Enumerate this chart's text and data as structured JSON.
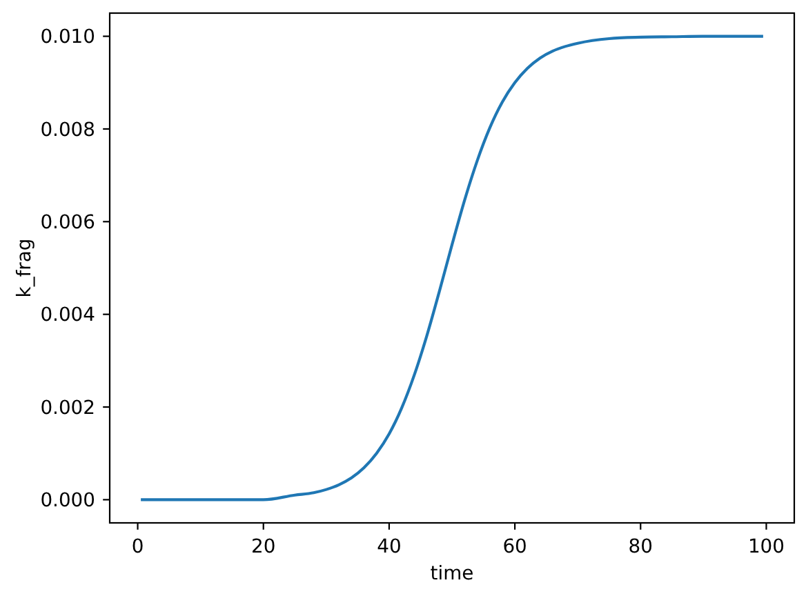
{
  "chart_data": {
    "type": "line",
    "xlabel": "time",
    "ylabel": "k_frag",
    "series": [
      {
        "color": "#1f77b4",
        "x": [
          0.5,
          5,
          10,
          15,
          20,
          25,
          28,
          30,
          32,
          34,
          36,
          38,
          40,
          42,
          44,
          46,
          48,
          50,
          52,
          54,
          56,
          58,
          60,
          62,
          64,
          66,
          68,
          70,
          75,
          80,
          85,
          90,
          95,
          99.5
        ],
        "values": [
          0,
          0,
          0,
          0,
          0,
          0.0001,
          0.00015,
          0.00022,
          0.00032,
          0.00047,
          0.00069,
          0.001,
          0.00142,
          0.00198,
          0.00269,
          0.00354,
          0.0045,
          0.0055,
          0.00646,
          0.00731,
          0.00802,
          0.00858,
          0.009,
          0.00931,
          0.00953,
          0.00968,
          0.00978,
          0.00985,
          0.00995,
          0.00998,
          0.00999,
          0.01,
          0.01,
          0.01
        ]
      }
    ],
    "xlim": [
      -4.45,
      104.45
    ],
    "xticks": [
      0,
      20,
      40,
      60,
      80,
      100
    ],
    "ylim": [
      -0.0005,
      0.0105
    ],
    "yticks": [
      {
        "value": 0,
        "label": "0.000"
      },
      {
        "value": 0.002,
        "label": "0.002"
      },
      {
        "value": 0.004,
        "label": "0.004"
      },
      {
        "value": 0.006,
        "label": "0.006"
      },
      {
        "value": 0.008,
        "label": "0.008"
      },
      {
        "value": 0.01,
        "label": "0.010"
      }
    ],
    "grid": false,
    "marker": "none",
    "line_style": "solid"
  }
}
